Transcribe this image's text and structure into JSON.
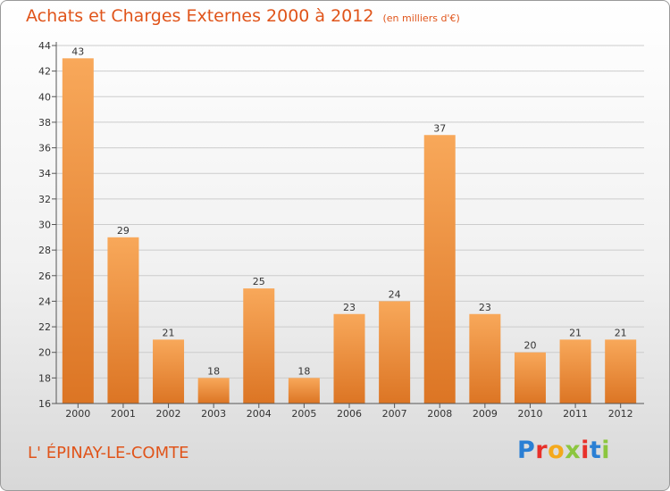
{
  "header": {
    "title": "Achats et Charges Externes 2000 à 2012",
    "unit": "(en milliers d'€)"
  },
  "footer": {
    "place": "L' ÉPINAY-LE-COMTE",
    "logo_letters": [
      "P",
      "r",
      "o",
      "x",
      "i",
      "t",
      "i"
    ]
  },
  "colors": {
    "title": "#e0541a",
    "bar_top": "#f8a85a",
    "bar_bottom": "#dc7524",
    "grid": "#cccccc"
  },
  "chart_data": {
    "type": "bar",
    "categories": [
      "2000",
      "2001",
      "2002",
      "2003",
      "2004",
      "2005",
      "2006",
      "2007",
      "2008",
      "2009",
      "2010",
      "2011",
      "2012"
    ],
    "values": [
      43,
      29,
      21,
      18,
      25,
      18,
      23,
      24,
      37,
      23,
      20,
      21,
      21
    ],
    "title": "Achats et Charges Externes 2000 à 2012",
    "ylim": [
      16,
      44
    ],
    "yticks": [
      16,
      18,
      20,
      22,
      24,
      26,
      28,
      30,
      32,
      34,
      36,
      38,
      40,
      42,
      44
    ],
    "grid": true,
    "data_labels": true
  }
}
